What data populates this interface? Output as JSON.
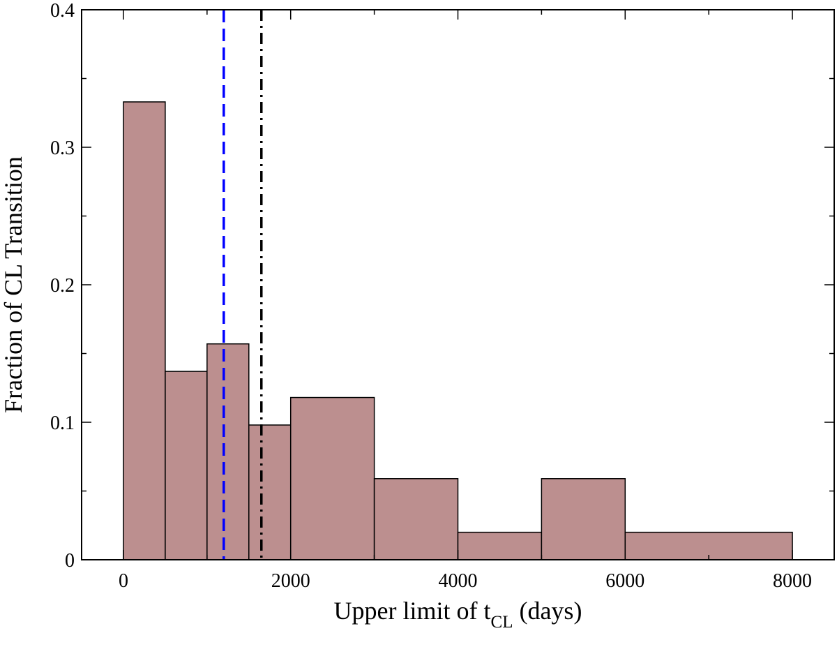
{
  "chart_data": {
    "type": "bar",
    "xlabel_main": "Upper limit of t",
    "xlabel_sub": "CL",
    "xlabel_tail": " (days)",
    "ylabel": "Fraction of CL Transition",
    "xlim": [
      -500,
      8500
    ],
    "ylim": [
      0,
      0.4
    ],
    "x_ticks": [
      0,
      2000,
      4000,
      6000,
      8000
    ],
    "x_tick_labels": [
      "0",
      "2000",
      "4000",
      "6000",
      "8000"
    ],
    "y_ticks": [
      0,
      0.1,
      0.2,
      0.3,
      0.4
    ],
    "y_tick_labels": [
      "0",
      "0.1",
      "0.2",
      "0.3",
      "0.4"
    ],
    "bins": [
      {
        "x0": 0,
        "x1": 500,
        "value": 0.333
      },
      {
        "x0": 500,
        "x1": 1000,
        "value": 0.137
      },
      {
        "x0": 1000,
        "x1": 1500,
        "value": 0.157
      },
      {
        "x0": 1500,
        "x1": 2000,
        "value": 0.098
      },
      {
        "x0": 2000,
        "x1": 3000,
        "value": 0.118
      },
      {
        "x0": 3000,
        "x1": 4000,
        "value": 0.059
      },
      {
        "x0": 4000,
        "x1": 5000,
        "value": 0.02
      },
      {
        "x0": 5000,
        "x1": 6000,
        "value": 0.059
      },
      {
        "x0": 6000,
        "x1": 8000,
        "value": 0.02
      }
    ],
    "bar_color": "#bc8f8f",
    "reference_lines": [
      {
        "x": 1200,
        "color": "#0000ff",
        "style": "dashed"
      },
      {
        "x": 1650,
        "color": "#000000",
        "style": "dash-dot"
      }
    ],
    "grid": false,
    "legend": "none"
  }
}
